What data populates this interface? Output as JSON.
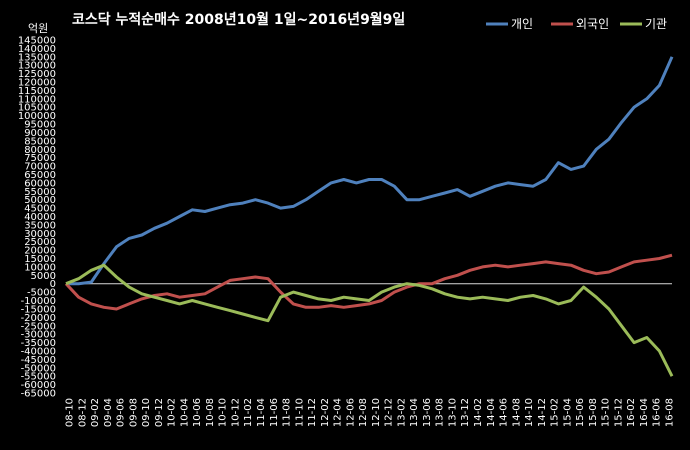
{
  "chart_data": {
    "type": "line",
    "title": "코스닥  누적순매수  2008년10월 1일~2016년9월9일",
    "unit_label": "억원",
    "ylim": [
      -65000,
      145000
    ],
    "ytick_step": 5000,
    "grid": false,
    "legend_position": "top-right",
    "x_ticks": [
      "08-10",
      "08-12",
      "09-02",
      "09-04",
      "09-06",
      "09-08",
      "09-10",
      "09-12",
      "10-02",
      "10-04",
      "10-06",
      "10-08",
      "10-10",
      "10-12",
      "11-02",
      "11-04",
      "11-06",
      "11-08",
      "11-10",
      "11-12",
      "12-02",
      "12-04",
      "12-06",
      "12-08",
      "12-10",
      "12-12",
      "13-02",
      "13-04",
      "13-06",
      "13-08",
      "13-10",
      "13-12",
      "14-02",
      "14-04",
      "14-06",
      "14-08",
      "14-10",
      "14-12",
      "15-02",
      "15-04",
      "15-06",
      "15-08",
      "15-10",
      "15-12",
      "16-02",
      "16-04",
      "16-06",
      "16-08"
    ],
    "x": [
      "08-10",
      "08-12",
      "09-02",
      "09-04",
      "09-06",
      "09-08",
      "09-10",
      "09-12",
      "10-02",
      "10-04",
      "10-06",
      "10-08",
      "10-10",
      "10-12",
      "11-02",
      "11-04",
      "11-06",
      "11-08",
      "11-10",
      "11-12",
      "12-02",
      "12-04",
      "12-06",
      "12-08",
      "12-10",
      "12-12",
      "13-02",
      "13-04",
      "13-06",
      "13-08",
      "13-10",
      "13-12",
      "14-02",
      "14-04",
      "14-06",
      "14-08",
      "14-10",
      "14-12",
      "15-02",
      "15-04",
      "15-06",
      "15-08",
      "15-10",
      "15-12",
      "16-02",
      "16-04",
      "16-06",
      "16-08",
      "16-09"
    ],
    "series": [
      {
        "name": "개인",
        "color": "#4F81BD",
        "values": [
          0,
          0,
          1000,
          12000,
          22000,
          27000,
          29000,
          33000,
          36000,
          40000,
          44000,
          43000,
          45000,
          47000,
          48000,
          50000,
          48000,
          45000,
          46000,
          50000,
          55000,
          60000,
          62000,
          60000,
          62000,
          62000,
          58000,
          50000,
          50000,
          52000,
          54000,
          56000,
          52000,
          55000,
          58000,
          60000,
          59000,
          58000,
          62000,
          72000,
          68000,
          70000,
          80000,
          86000,
          96000,
          105000,
          110000,
          118000,
          135000
        ]
      },
      {
        "name": "외국인",
        "color": "#C0504D",
        "values": [
          0,
          -8000,
          -12000,
          -14000,
          -15000,
          -12000,
          -9000,
          -7000,
          -6000,
          -8000,
          -7000,
          -6000,
          -2000,
          2000,
          3000,
          4000,
          3000,
          -5000,
          -12000,
          -14000,
          -14000,
          -13000,
          -14000,
          -13000,
          -12000,
          -10000,
          -5000,
          -2000,
          0,
          0,
          3000,
          5000,
          8000,
          10000,
          11000,
          10000,
          11000,
          12000,
          13000,
          12000,
          11000,
          8000,
          6000,
          7000,
          10000,
          13000,
          14000,
          15000,
          17000
        ]
      },
      {
        "name": "기관",
        "color": "#9BBB59",
        "values": [
          0,
          3000,
          8000,
          11000,
          4000,
          -2000,
          -6000,
          -8000,
          -10000,
          -12000,
          -10000,
          -12000,
          -14000,
          -16000,
          -18000,
          -20000,
          -22000,
          -8000,
          -5000,
          -7000,
          -9000,
          -10000,
          -8000,
          -9000,
          -10000,
          -5000,
          -2000,
          0,
          -1000,
          -3000,
          -6000,
          -8000,
          -9000,
          -8000,
          -9000,
          -10000,
          -8000,
          -7000,
          -9000,
          -12000,
          -10000,
          -2000,
          -8000,
          -15000,
          -25000,
          -35000,
          -32000,
          -40000,
          -55000
        ]
      }
    ]
  }
}
